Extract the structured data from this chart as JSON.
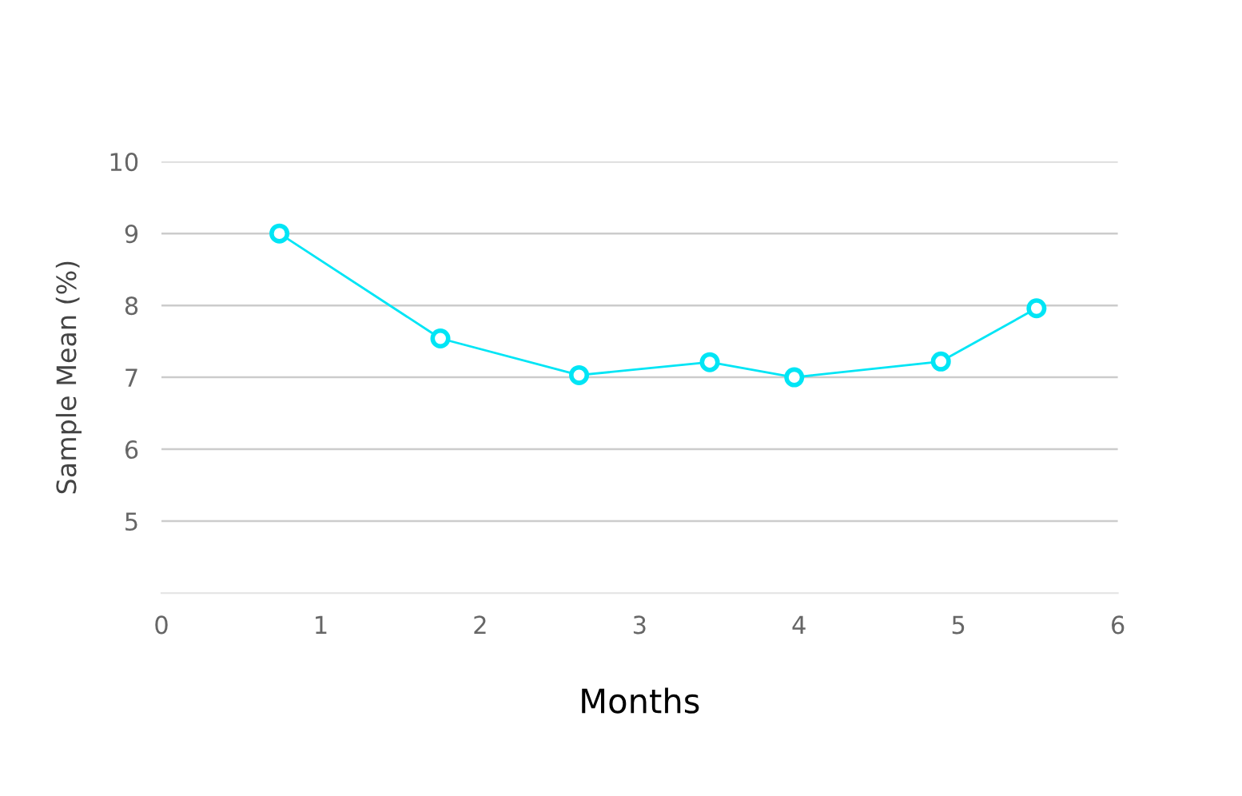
{
  "chart_data": {
    "type": "line",
    "xlabel": "Months",
    "ylabel": "Sample Mean (%)",
    "x": [
      0.74,
      1.75,
      2.62,
      3.44,
      3.97,
      4.89,
      5.49
    ],
    "series": [
      {
        "color": "#00e5f5",
        "values": [
          9.0,
          7.54,
          7.03,
          7.21,
          7.0,
          7.22,
          7.96
        ]
      }
    ],
    "xlim": [
      0,
      6
    ],
    "xticks": [
      0,
      1,
      2,
      3,
      4,
      5,
      6
    ],
    "ylim": [
      4,
      10
    ],
    "yticks": [
      5,
      6,
      7,
      8,
      9,
      10
    ],
    "grid": "y",
    "marker": "circle",
    "line_style": "solid",
    "legend": false
  }
}
